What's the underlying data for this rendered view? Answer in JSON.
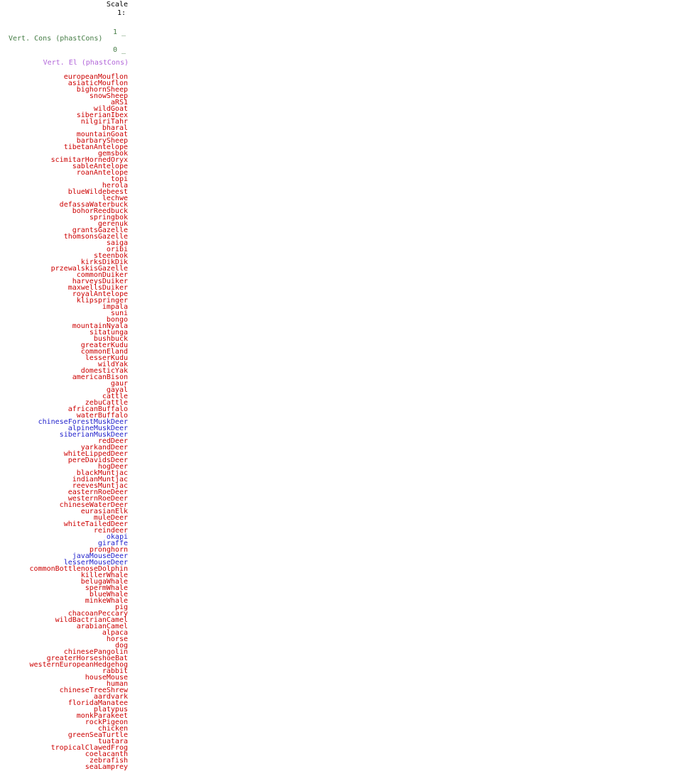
{
  "colors": {
    "background": "#FFFFFF",
    "scale_black": "#000000",
    "species_red": "#CC0000",
    "species_blue": "#2222CC",
    "cons_green": "#467D46",
    "el_purple": "#B266D9"
  },
  "scale": {
    "label": "Scale",
    "ratio_prefix": "1:"
  },
  "cons_track": {
    "label": "Vert. Cons (phastCons)",
    "tick_top": "1 _",
    "tick_bottom": "0 _",
    "axis_max": "1",
    "axis_min": "0"
  },
  "el_track": {
    "label": "Vert. El (phastCons)"
  },
  "species_list": {
    "items": [
      {
        "name": "europeanMouflon",
        "color": "red"
      },
      {
        "name": "asiaticMouflon",
        "color": "red"
      },
      {
        "name": "bighornSheep",
        "color": "red"
      },
      {
        "name": "snowSheep",
        "color": "red"
      },
      {
        "name": "aRS1",
        "color": "red"
      },
      {
        "name": "wildGoat",
        "color": "red"
      },
      {
        "name": "siberianIbex",
        "color": "red"
      },
      {
        "name": "nilgiriTahr",
        "color": "red"
      },
      {
        "name": "bharal",
        "color": "red"
      },
      {
        "name": "mountainGoat",
        "color": "red"
      },
      {
        "name": "barbarySheep",
        "color": "red"
      },
      {
        "name": "tibetanAntelope",
        "color": "red"
      },
      {
        "name": "gemsbok",
        "color": "red"
      },
      {
        "name": "scimitarHornedOryx",
        "color": "red"
      },
      {
        "name": "sableAntelope",
        "color": "red"
      },
      {
        "name": "roanAntelope",
        "color": "red"
      },
      {
        "name": "topi",
        "color": "red"
      },
      {
        "name": "herola",
        "color": "red"
      },
      {
        "name": "blueWildebeest",
        "color": "red"
      },
      {
        "name": "lechwe",
        "color": "red"
      },
      {
        "name": "defassaWaterbuck",
        "color": "red"
      },
      {
        "name": "bohorReedbuck",
        "color": "red"
      },
      {
        "name": "springbok",
        "color": "red"
      },
      {
        "name": "gerenuk",
        "color": "red"
      },
      {
        "name": "grantsGazelle",
        "color": "red"
      },
      {
        "name": "thomsonsGazelle",
        "color": "red"
      },
      {
        "name": "saiga",
        "color": "red"
      },
      {
        "name": "oribi",
        "color": "red"
      },
      {
        "name": "steenbok",
        "color": "red"
      },
      {
        "name": "kirksDikDik",
        "color": "red"
      },
      {
        "name": "przewalskisGazelle",
        "color": "red"
      },
      {
        "name": "commonDuiker",
        "color": "red"
      },
      {
        "name": "harveysDuiker",
        "color": "red"
      },
      {
        "name": "maxwellsDuiker",
        "color": "red"
      },
      {
        "name": "royalAntelope",
        "color": "red"
      },
      {
        "name": "klipspringer",
        "color": "red"
      },
      {
        "name": "impala",
        "color": "red"
      },
      {
        "name": "suni",
        "color": "red"
      },
      {
        "name": "bongo",
        "color": "red"
      },
      {
        "name": "mountainNyala",
        "color": "red"
      },
      {
        "name": "sitatunga",
        "color": "red"
      },
      {
        "name": "bushbuck",
        "color": "red"
      },
      {
        "name": "greaterKudu",
        "color": "red"
      },
      {
        "name": "commonEland",
        "color": "red"
      },
      {
        "name": "lesserKudu",
        "color": "red"
      },
      {
        "name": "wildYak",
        "color": "red"
      },
      {
        "name": "domesticYak",
        "color": "red"
      },
      {
        "name": "americanBison",
        "color": "red"
      },
      {
        "name": "gaur",
        "color": "red"
      },
      {
        "name": "gayal",
        "color": "red"
      },
      {
        "name": "cattle",
        "color": "red"
      },
      {
        "name": "zebuCattle",
        "color": "red"
      },
      {
        "name": "africanBuffalo",
        "color": "red"
      },
      {
        "name": "waterBuffalo",
        "color": "red"
      },
      {
        "name": "chineseForestMuskDeer",
        "color": "blue"
      },
      {
        "name": "alpineMuskDeer",
        "color": "blue"
      },
      {
        "name": "siberianMuskDeer",
        "color": "blue"
      },
      {
        "name": "redDeer",
        "color": "red"
      },
      {
        "name": "yarkandDeer",
        "color": "red"
      },
      {
        "name": "whiteLippedDeer",
        "color": "red"
      },
      {
        "name": "pereDavidsDeer",
        "color": "red"
      },
      {
        "name": "hogDeer",
        "color": "red"
      },
      {
        "name": "blackMuntjac",
        "color": "red"
      },
      {
        "name": "indianMuntjac",
        "color": "red"
      },
      {
        "name": "reevesMuntjac",
        "color": "red"
      },
      {
        "name": "easternRoeDeer",
        "color": "red"
      },
      {
        "name": "westernRoeDeer",
        "color": "red"
      },
      {
        "name": "chineseWaterDeer",
        "color": "red"
      },
      {
        "name": "eurasianElk",
        "color": "red"
      },
      {
        "name": "muleDeer",
        "color": "red"
      },
      {
        "name": "whiteTailedDeer",
        "color": "red"
      },
      {
        "name": "reindeer",
        "color": "red"
      },
      {
        "name": "okapi",
        "color": "blue"
      },
      {
        "name": "giraffe",
        "color": "blue"
      },
      {
        "name": "pronghorn",
        "color": "red"
      },
      {
        "name": "javaMouseDeer",
        "color": "blue"
      },
      {
        "name": "lesserMouseDeer",
        "color": "blue"
      },
      {
        "name": "commonBottlenoseDolphin",
        "color": "red"
      },
      {
        "name": "killerWhale",
        "color": "red"
      },
      {
        "name": "belugaWhale",
        "color": "red"
      },
      {
        "name": "spermWhale",
        "color": "red"
      },
      {
        "name": "blueWhale",
        "color": "red"
      },
      {
        "name": "minkeWhale",
        "color": "red"
      },
      {
        "name": "pig",
        "color": "red"
      },
      {
        "name": "chacoanPeccary",
        "color": "red"
      },
      {
        "name": "wildBactrianCamel",
        "color": "red"
      },
      {
        "name": "arabianCamel",
        "color": "red"
      },
      {
        "name": "alpaca",
        "color": "red"
      },
      {
        "name": "horse",
        "color": "red"
      },
      {
        "name": "dog",
        "color": "red"
      },
      {
        "name": "chinesePangolin",
        "color": "red"
      },
      {
        "name": "greaterHorseshoeBat",
        "color": "red"
      },
      {
        "name": "westernEuropeanHedgehog",
        "color": "red"
      },
      {
        "name": "rabbit",
        "color": "red"
      },
      {
        "name": "houseMouse",
        "color": "red"
      },
      {
        "name": "human",
        "color": "red"
      },
      {
        "name": "chineseTreeShrew",
        "color": "red"
      },
      {
        "name": "aardvark",
        "color": "red"
      },
      {
        "name": "floridaManatee",
        "color": "red"
      },
      {
        "name": "platypus",
        "color": "red"
      },
      {
        "name": "monkParakeet",
        "color": "red"
      },
      {
        "name": "rockPigeon",
        "color": "red"
      },
      {
        "name": "chicken",
        "color": "red"
      },
      {
        "name": "greenSeaTurtle",
        "color": "red"
      },
      {
        "name": "tuatara",
        "color": "red"
      },
      {
        "name": "tropicalClawedFrog",
        "color": "red"
      },
      {
        "name": "coelacanth",
        "color": "red"
      },
      {
        "name": "zebrafish",
        "color": "red"
      },
      {
        "name": "seaLamprey",
        "color": "red"
      }
    ]
  }
}
